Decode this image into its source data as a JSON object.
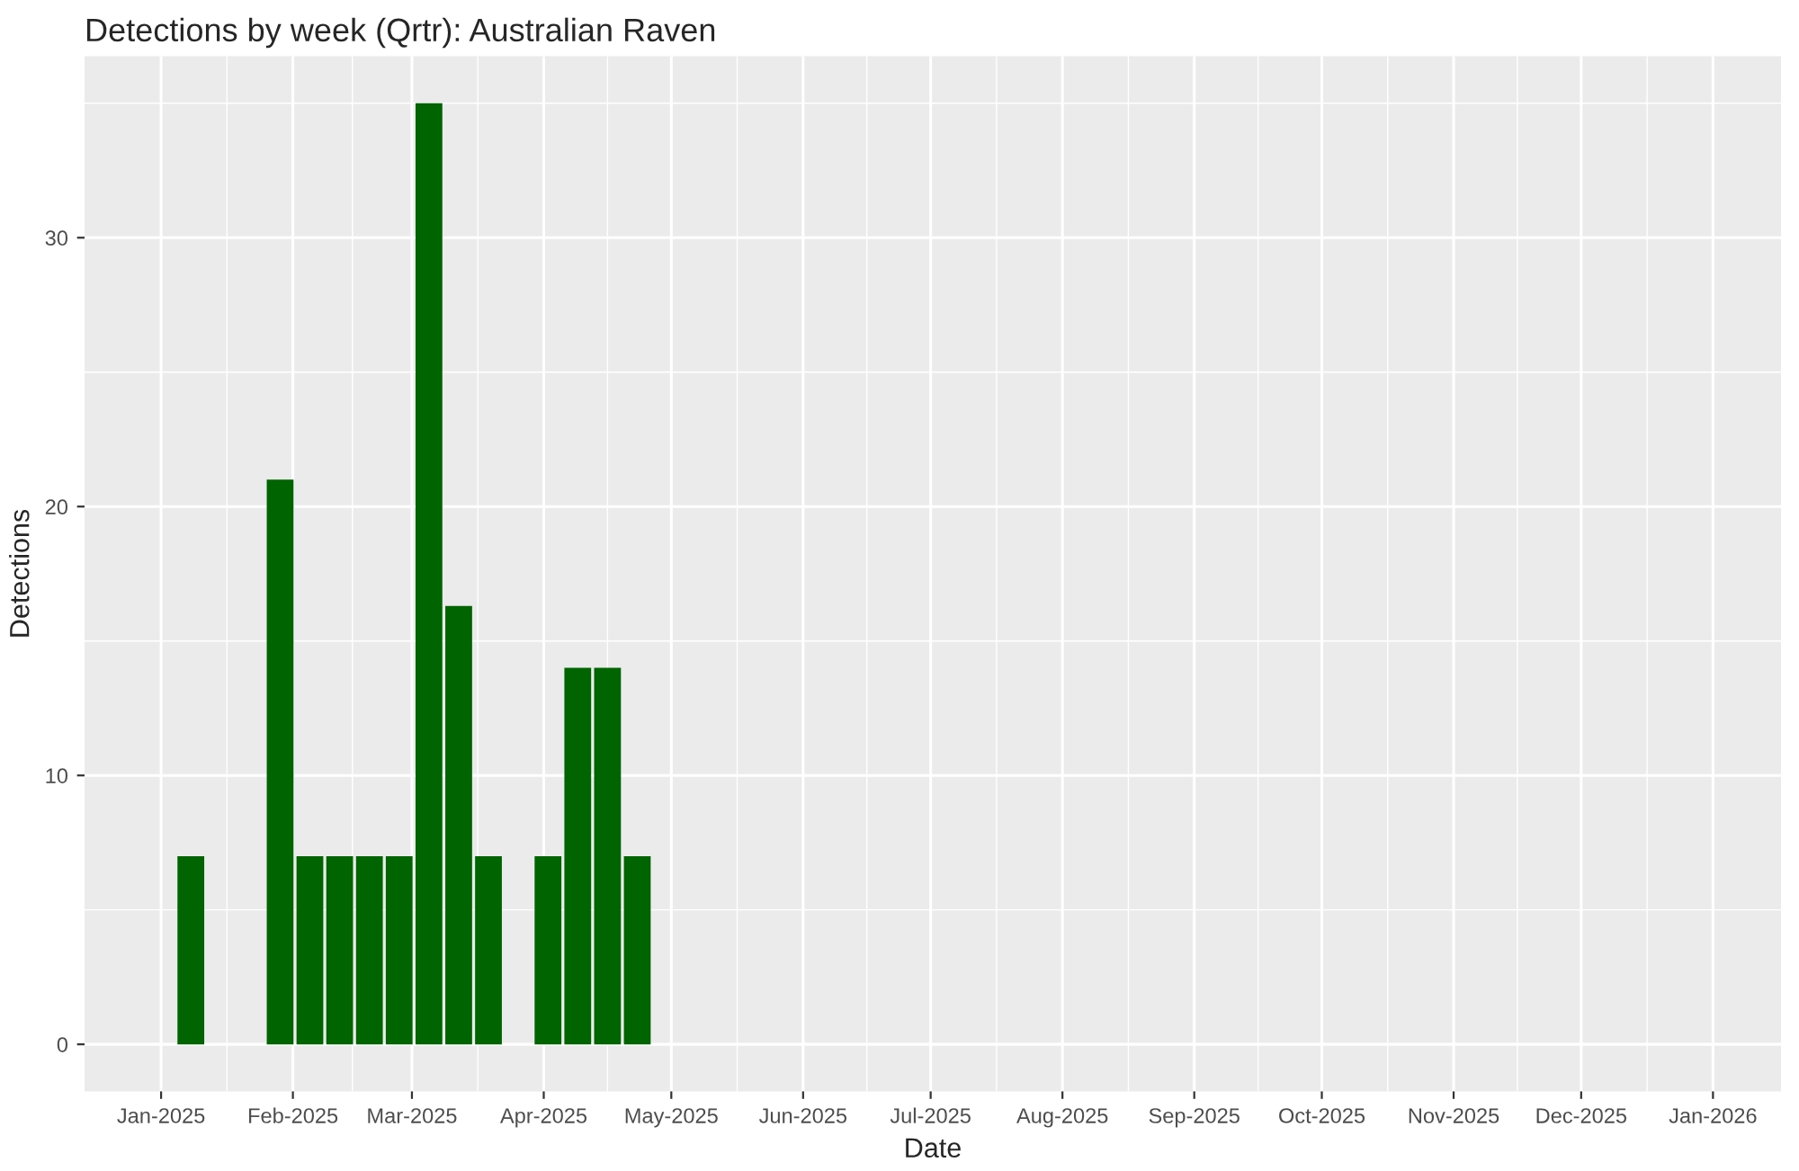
{
  "chart_data": {
    "type": "bar",
    "title": "Detections by week (Qrtr): Australian Raven",
    "xlabel": "Date",
    "ylabel": "Detections",
    "x": [
      "2025-01-08",
      "2025-01-29",
      "2025-02-05",
      "2025-02-12",
      "2025-02-19",
      "2025-02-26",
      "2025-03-05",
      "2025-03-12",
      "2025-03-19",
      "2025-04-02",
      "2025-04-09",
      "2025-04-16",
      "2025-04-23"
    ],
    "values": [
      7,
      21,
      7,
      7,
      7,
      7,
      35,
      16.3,
      7,
      7,
      14,
      14,
      7
    ],
    "color": "#006400",
    "xlim": [
      "2024-12-14",
      "2026-01-17"
    ],
    "xticks": [
      {
        "value": "2025-01-01",
        "label": "Jan-2025"
      },
      {
        "value": "2025-02-01",
        "label": "Feb-2025"
      },
      {
        "value": "2025-03-01",
        "label": "Mar-2025"
      },
      {
        "value": "2025-04-01",
        "label": "Apr-2025"
      },
      {
        "value": "2025-05-01",
        "label": "May-2025"
      },
      {
        "value": "2025-06-01",
        "label": "Jun-2025"
      },
      {
        "value": "2025-07-01",
        "label": "Jul-2025"
      },
      {
        "value": "2025-08-01",
        "label": "Aug-2025"
      },
      {
        "value": "2025-09-01",
        "label": "Sep-2025"
      },
      {
        "value": "2025-10-01",
        "label": "Oct-2025"
      },
      {
        "value": "2025-11-01",
        "label": "Nov-2025"
      },
      {
        "value": "2025-12-01",
        "label": "Dec-2025"
      },
      {
        "value": "2026-01-01",
        "label": "Jan-2026"
      }
    ],
    "ylim": [
      -1.75,
      36.75
    ],
    "yticks": [
      0,
      10,
      20,
      30
    ],
    "grid": true
  }
}
